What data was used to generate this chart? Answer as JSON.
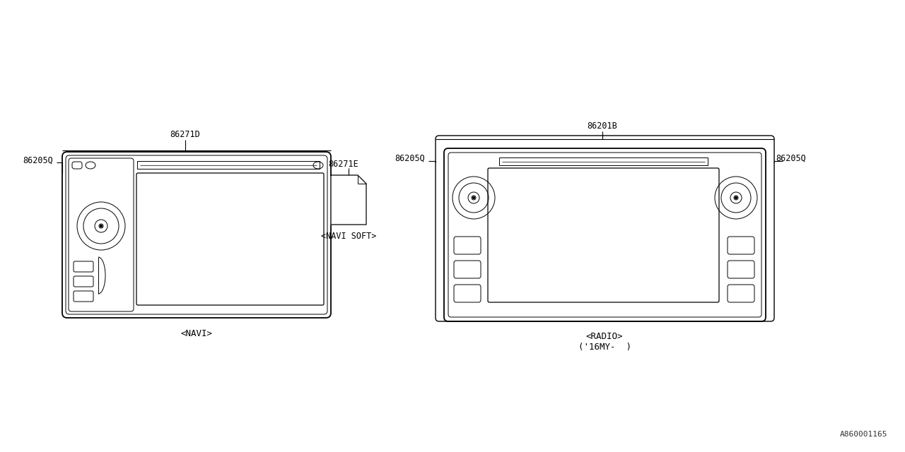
{
  "bg_color": "#ffffff",
  "line_color": "#000000",
  "font_family": "monospace",
  "watermark": "A860001165",
  "navi_label": "<NAVI>",
  "radio_label": "<RADIO>",
  "radio_sublabel": "('16MY-  )",
  "navi_soft_label": "<NAVI SOFT>",
  "part_86271D": "86271D",
  "part_86201B": "86201B",
  "part_86205Q_navi": "86205Q",
  "part_86205Q_radio_left": "86205Q",
  "part_86205Q_radio_right": "86205Q",
  "part_86271E": "86271E"
}
